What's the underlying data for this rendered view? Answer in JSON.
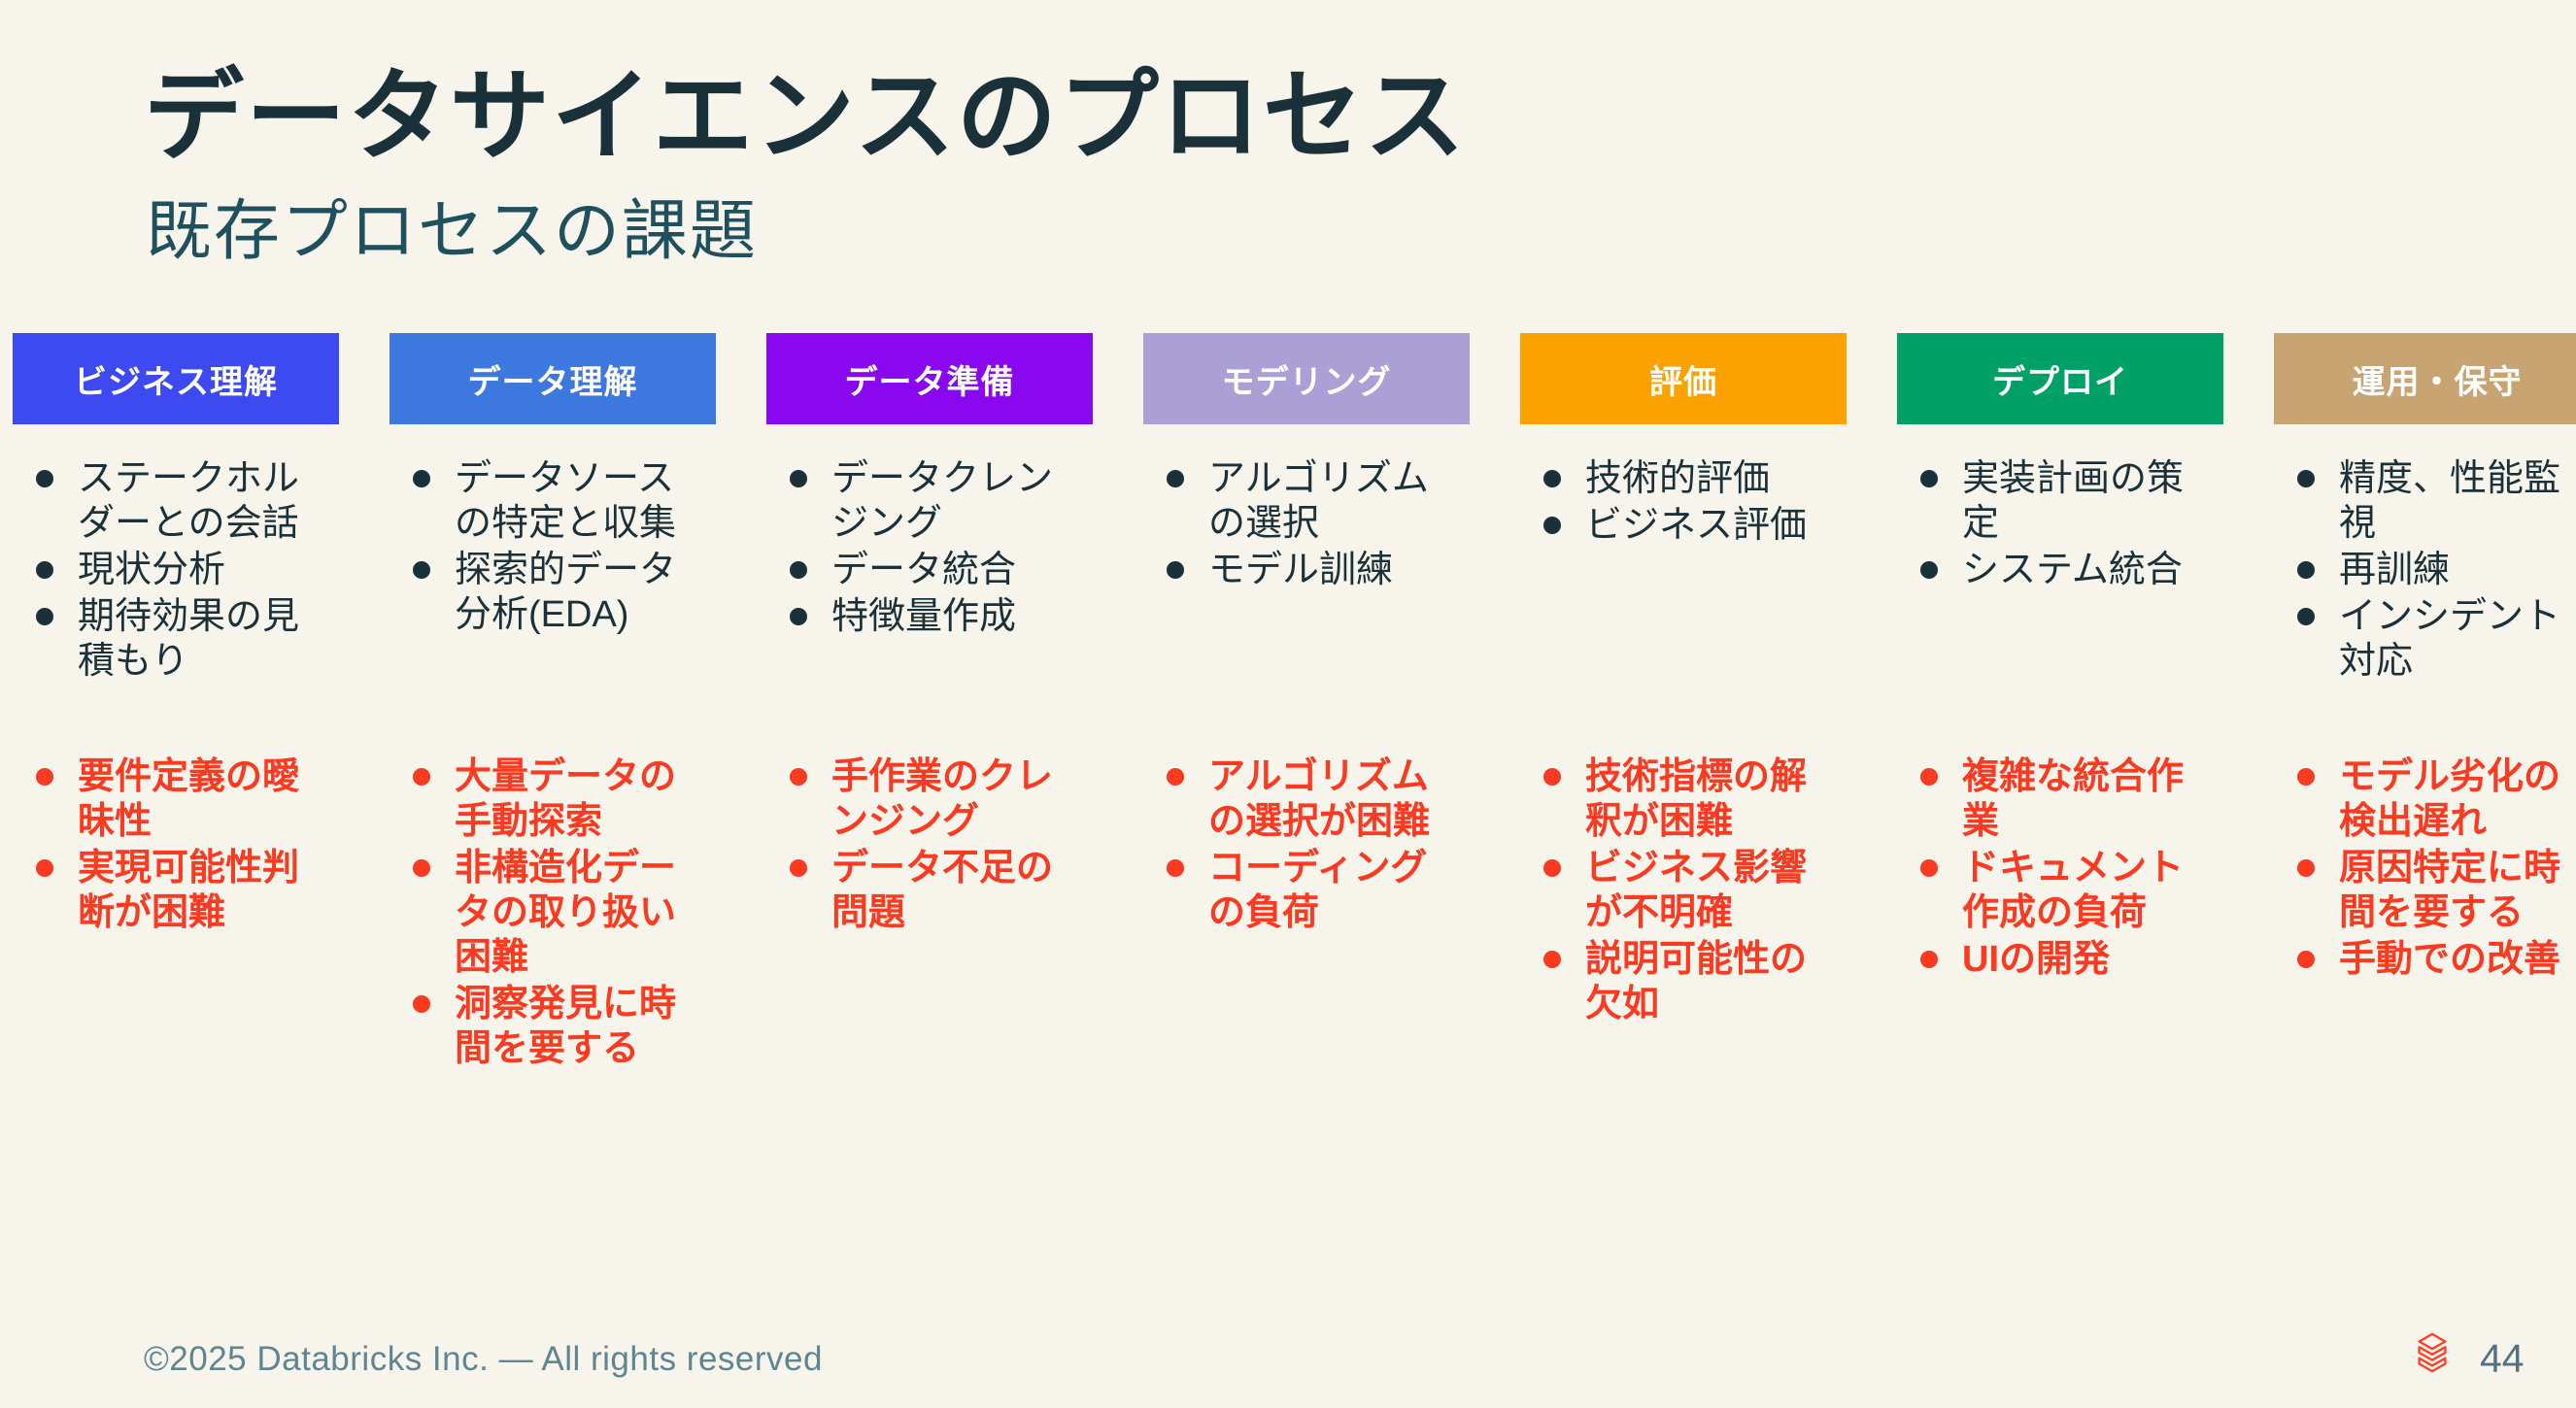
{
  "slide": {
    "title": "データサイエンスのプロセス",
    "subtitle": "既存プロセスの課題",
    "colors": {
      "background": "#F7F4EC",
      "title_text": "#1B3139",
      "subtitle_text": "#1F505E",
      "task_text": "#1B3139",
      "challenge_text": "#FA3A21",
      "header_label_text": "#FFFFFF",
      "footer_text": "#5F8591",
      "page_number_text": "#547180",
      "logo": "#FF3B25"
    },
    "columns": [
      {
        "label": "ビジネス理解",
        "color": "#3D4AF2",
        "tasks": [
          "ステークホルダーとの会話",
          "現状分析",
          "期待効果の見積もり"
        ],
        "challenges": [
          "要件定義の曖昧性",
          "実現可能性判断が困難"
        ]
      },
      {
        "label": "データ理解",
        "color": "#3C78DE",
        "tasks": [
          "データソースの特定と収集",
          "探索的データ分析(EDA)"
        ],
        "challenges": [
          "大量データの手動探索",
          "非構造化データの取り扱い困難",
          "洞察発見に時間を要する"
        ]
      },
      {
        "label": "データ準備",
        "color": "#8A08F0",
        "tasks": [
          "データクレンジング",
          "データ統合",
          "特徴量作成"
        ],
        "challenges": [
          "手作業のクレンジング",
          "データ不足の問題"
        ]
      },
      {
        "label": "モデリング",
        "color": "#AAA0D6",
        "tasks": [
          "アルゴリズムの選択",
          "モデル訓練"
        ],
        "challenges": [
          "アルゴリズムの選択が困難",
          "コーディングの負荷"
        ]
      },
      {
        "label": "評価",
        "color": "#FBA200",
        "tasks": [
          "技術的評価",
          "ビジネス評価"
        ],
        "challenges": [
          "技術指標の解釈が困難",
          "ビジネス影響が不明確",
          "説明可能性の欠如"
        ]
      },
      {
        "label": "デプロイ",
        "color": "#00A068",
        "tasks": [
          "実装計画の策定",
          "システム統合"
        ],
        "challenges": [
          "複雑な統合作業",
          "ドキュメント作成の負荷",
          "UIの開発"
        ]
      },
      {
        "label": "運用・保守",
        "color": "#C7A472",
        "tasks": [
          "精度、性能監視",
          "再訓練",
          "インシデント対応"
        ],
        "challenges": [
          "モデル劣化の検出遅れ",
          "原因特定に時間を要する",
          "手動での改善"
        ]
      }
    ],
    "footer": {
      "copyright": "©2025 Databricks Inc. — All rights reserved",
      "page_number": "44"
    }
  }
}
